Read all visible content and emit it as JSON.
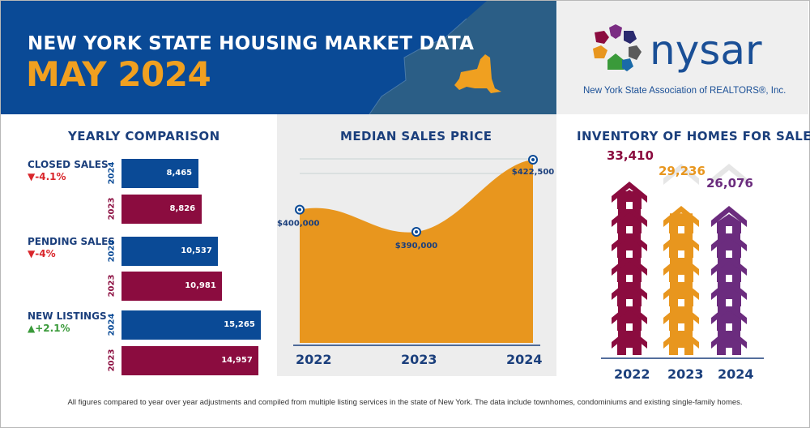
{
  "header": {
    "title_line1": "NEW YORK STATE HOUSING MARKET DATA",
    "title_line2": "MAY 2024"
  },
  "logo": {
    "name": "nysar",
    "subtitle": "New York State Association of REALTORS®, Inc."
  },
  "yearly_comparison": {
    "title": "YEARLY COMPARISON",
    "metrics": [
      {
        "label": "CLOSED SALES",
        "change": "-4.1%",
        "direction": "down"
      },
      {
        "label": "PENDING SALES",
        "change": "-4%",
        "direction": "down"
      },
      {
        "label": "NEW LISTINGS",
        "change": "+2.1%",
        "direction": "up"
      }
    ],
    "year_labels": [
      "2024",
      "2023",
      "2024",
      "2023",
      "2024",
      "2023"
    ],
    "value_labels": [
      "8,465",
      "8,826",
      "10,537",
      "10,981",
      "15,265",
      "14,957"
    ]
  },
  "median_price": {
    "title": "MEDIAN SALES PRICE",
    "price_labels": [
      "$400,000",
      "$390,000",
      "$422,500"
    ],
    "years": [
      "2022",
      "2023",
      "2024"
    ]
  },
  "inventory": {
    "title": "INVENTORY OF HOMES FOR SALE",
    "value_labels": [
      "33,410",
      "29,236",
      "26,076"
    ],
    "years": [
      "2022",
      "2023",
      "2024"
    ]
  },
  "footer": "All figures compared to year over year adjustments and compiled from multiple listing services in the state of New York.  The data include townhomes, condominiums and existing single-family homes.",
  "colors": {
    "blue": "#0a4a96",
    "maroon": "#8b0c3f",
    "orange": "#e8961e",
    "purple": "#6b2c7e",
    "navy_text": "#1b3f7c",
    "down_red": "#d9262b",
    "up_green": "#3a9a3a"
  },
  "chart_data": [
    {
      "type": "bar",
      "title": "YEARLY COMPARISON",
      "categories": [
        "CLOSED SALES",
        "PENDING SALES",
        "NEW LISTINGS"
      ],
      "series": [
        {
          "name": "2024",
          "values": [
            8465,
            10537,
            15265
          ]
        },
        {
          "name": "2023",
          "values": [
            8826,
            10981,
            14957
          ]
        }
      ],
      "changes": [
        "-4.1%",
        "-4%",
        "+2.1%"
      ]
    },
    {
      "type": "area",
      "title": "MEDIAN SALES PRICE",
      "x": [
        "2022",
        "2023",
        "2024"
      ],
      "values": [
        400000,
        390000,
        422500
      ],
      "ylim": [
        340000,
        432000
      ]
    },
    {
      "type": "bar",
      "title": "INVENTORY OF HOMES FOR SALE",
      "categories": [
        "2022",
        "2023",
        "2024"
      ],
      "values": [
        33410,
        29236,
        26076
      ]
    }
  ]
}
